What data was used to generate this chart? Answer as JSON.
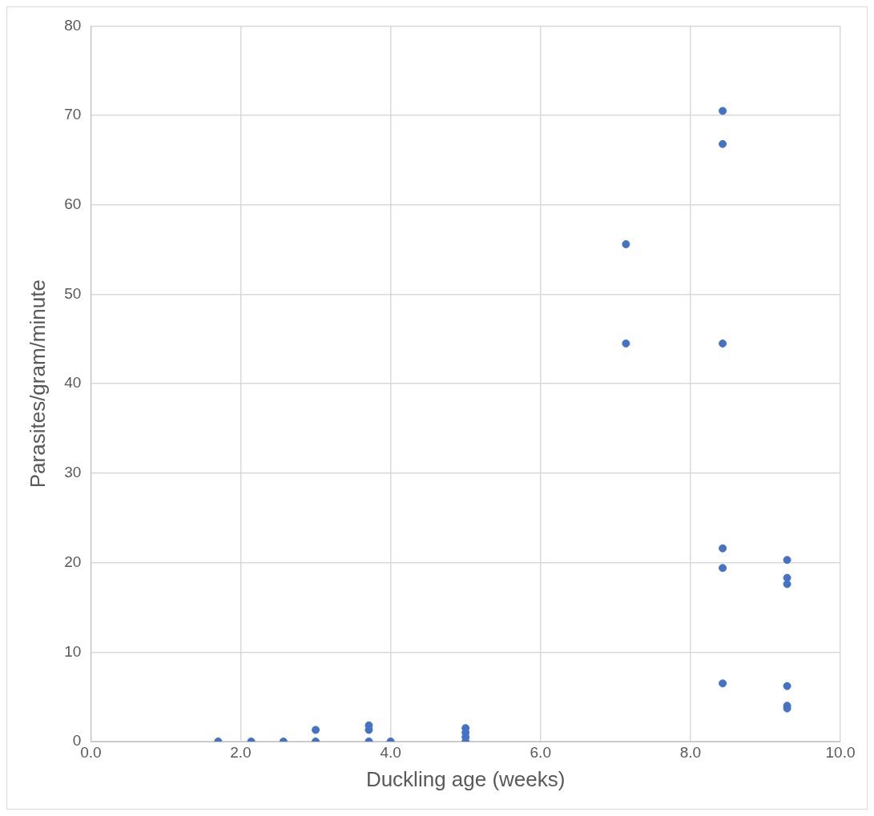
{
  "chart_data": {
    "type": "scatter",
    "xlabel": "Duckling age (weeks)",
    "ylabel": "Parasites/gram/minute",
    "x": [
      1.7,
      2.14,
      2.57,
      3.0,
      3.0,
      3.71,
      3.71,
      3.71,
      4.0,
      5.0,
      5.0,
      5.0,
      5.0,
      7.14,
      7.14,
      8.43,
      8.43,
      8.43,
      8.43,
      8.43,
      8.43,
      9.29,
      9.29,
      9.29,
      9.29,
      9.29,
      9.29
    ],
    "values": [
      0,
      0,
      0,
      0,
      1.3,
      0,
      1.3,
      1.8,
      0,
      0,
      0.5,
      1.0,
      1.5,
      55.6,
      44.5,
      70.5,
      66.8,
      44.5,
      21.6,
      19.4,
      6.5,
      20.3,
      18.3,
      17.6,
      6.2,
      4.0,
      3.7
    ],
    "color": "#4472c4",
    "marker": "circle",
    "grid": true,
    "legend": false,
    "xlim": [
      0,
      10
    ],
    "xticks": [
      {
        "value": 0,
        "label": "0.0"
      },
      {
        "value": 2,
        "label": "2.0"
      },
      {
        "value": 4,
        "label": "4.0"
      },
      {
        "value": 6,
        "label": "6.0"
      },
      {
        "value": 8,
        "label": "8.0"
      },
      {
        "value": 10,
        "label": "10.0"
      }
    ],
    "ylim": [
      0,
      80
    ],
    "yticks": [
      0,
      10,
      20,
      30,
      40,
      50,
      60,
      70,
      80
    ]
  }
}
